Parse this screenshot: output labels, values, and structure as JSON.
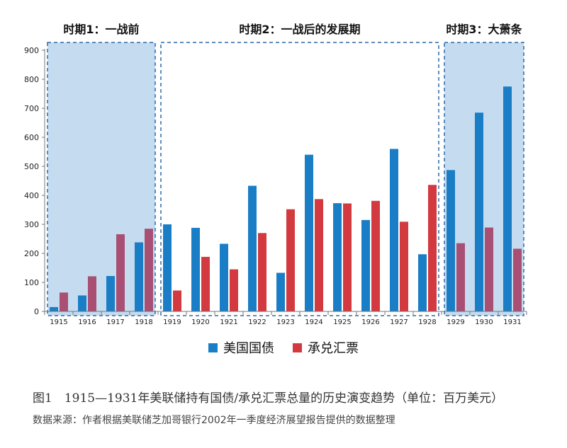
{
  "chart_data": {
    "type": "bar",
    "categories": [
      "1915",
      "1916",
      "1917",
      "1918",
      "1919",
      "1920",
      "1921",
      "1922",
      "1923",
      "1924",
      "1925",
      "1926",
      "1927",
      "1928",
      "1929",
      "1930",
      "1931"
    ],
    "series": [
      {
        "name": "美国国债",
        "values": [
          15,
          55,
          122,
          238,
          300,
          288,
          233,
          433,
          133,
          540,
          373,
          315,
          560,
          197,
          487,
          685,
          775
        ]
      },
      {
        "name": "承兑汇票",
        "values": [
          65,
          121,
          266,
          285,
          72,
          188,
          145,
          270,
          352,
          387,
          372,
          381,
          309,
          436,
          235,
          289,
          216
        ]
      }
    ],
    "ylim": [
      0,
      900
    ],
    "yticks": [
      0,
      100,
      200,
      300,
      400,
      500,
      600,
      700,
      800,
      900
    ],
    "periods": [
      {
        "label": "时期1：一战前",
        "start": "1915",
        "end": "1918",
        "shaded": true
      },
      {
        "label": "时期2：一战后的发展期",
        "start": "1919",
        "end": "1928",
        "shaded": false
      },
      {
        "label": "时期3：大萧条",
        "start": "1929",
        "end": "1931",
        "shaded": true
      }
    ],
    "legend": [
      "美国国债",
      "承兑汇票"
    ],
    "legend_position": "bottom",
    "title": "图1　1915—1931年美联储持有国债/承兑汇票总量的历史演变趋势（单位：百万美元）",
    "source": "数据来源：作者根据美联储芝加哥银行2002年一季度经济展望报告提供的数据整理"
  },
  "colors": {
    "treasury": "#1a7ec6",
    "acceptance": "#d33a3f",
    "acceptance_shaded": "#a84f73",
    "shade": "#c5dcf0",
    "border": "#2c6aa8"
  }
}
